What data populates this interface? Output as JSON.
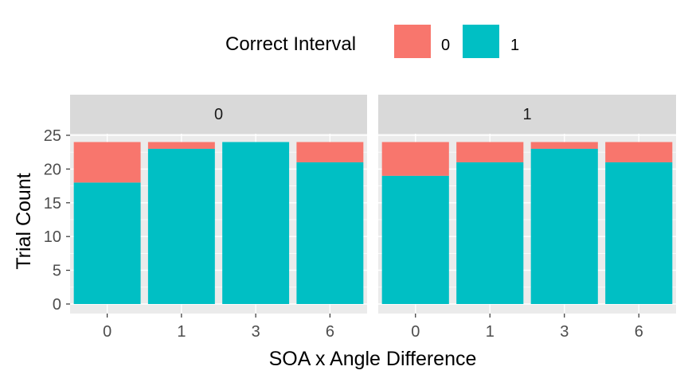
{
  "chart_data": {
    "type": "bar",
    "stacked": true,
    "legend": {
      "title": "Correct Interval",
      "position": "top",
      "entries": [
        {
          "label": "0",
          "color": "#F8766D"
        },
        {
          "label": "1",
          "color": "#00BFC4"
        }
      ]
    },
    "xlabel": "SOA x Angle Difference",
    "ylabel": "Trial Count",
    "ylim": [
      0,
      25
    ],
    "yticks": [
      "0",
      "5",
      "10",
      "15",
      "20",
      "25"
    ],
    "categories": [
      "0",
      "1",
      "3",
      "6"
    ],
    "grid": true,
    "facets": [
      {
        "label": "0",
        "series": [
          {
            "name": "1",
            "values": [
              18,
              23,
              24,
              21
            ]
          },
          {
            "name": "0",
            "values": [
              6,
              1,
              0,
              3
            ]
          }
        ]
      },
      {
        "label": "1",
        "series": [
          {
            "name": "1",
            "values": [
              19,
              21,
              23,
              21
            ]
          },
          {
            "name": "0",
            "values": [
              5,
              3,
              1,
              3
            ]
          }
        ]
      }
    ]
  }
}
